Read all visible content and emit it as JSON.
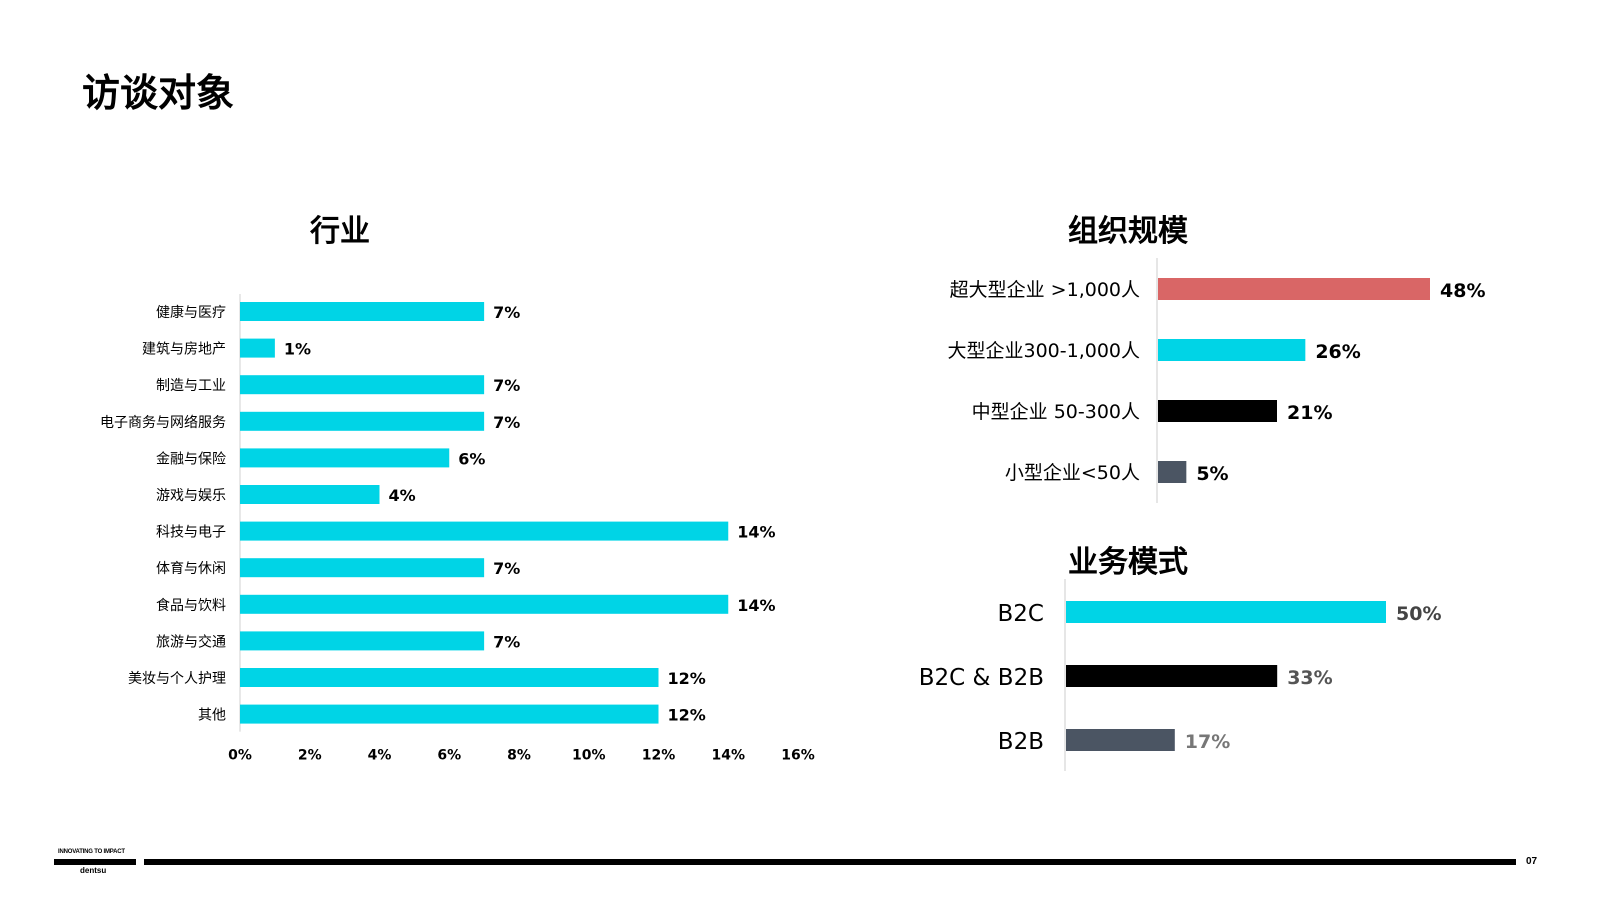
{
  "page": {
    "title": "访谈对象",
    "page_number": "07",
    "brand": {
      "tagline": "INNOVATING TO IMPACT",
      "logo": "dentsu"
    },
    "colors": {
      "cyan": "#00d4e6",
      "black": "#000000",
      "coral": "#d96666",
      "slate": "#4b5563"
    }
  },
  "chart_data": [
    {
      "type": "bar",
      "orientation": "horizontal",
      "title": "行业",
      "categories": [
        "健康与医疗",
        "建筑与房地产",
        "制造与工业",
        "电子商务与网络服务",
        "金融与保险",
        "游戏与娱乐",
        "科技与电子",
        "体育与休闲",
        "食品与饮料",
        "旅游与交通",
        "美妆与个人护理",
        "其他"
      ],
      "values": [
        7,
        1,
        7,
        7,
        6,
        4,
        14,
        7,
        14,
        7,
        12,
        12
      ],
      "value_labels": [
        "7%",
        "1%",
        "7%",
        "7%",
        "6%",
        "4%",
        "14%",
        "7%",
        "14%",
        "7%",
        "12%",
        "12%"
      ],
      "xlim": [
        0,
        16
      ],
      "x_ticks": [
        "0%",
        "2%",
        "4%",
        "6%",
        "8%",
        "10%",
        "12%",
        "14%",
        "16%"
      ],
      "color": "#00d4e6",
      "grid": false
    },
    {
      "type": "bar",
      "orientation": "horizontal",
      "title": "组织规模",
      "categories": [
        "超大型企业 >1,000人",
        "大型企业300-1,000人",
        "中型企业 50-300人",
        "小型企业<50人"
      ],
      "values": [
        48,
        26,
        21,
        5
      ],
      "value_labels": [
        "48%",
        "26%",
        "21%",
        "5%"
      ],
      "colors": [
        "#d96666",
        "#00d4e6",
        "#000000",
        "#4b5563"
      ],
      "grid": false
    },
    {
      "type": "bar",
      "orientation": "horizontal",
      "title": "业务模式",
      "categories": [
        "B2C",
        "B2C & B2B",
        "B2B"
      ],
      "values": [
        50,
        33,
        17
      ],
      "value_labels": [
        "50%",
        "33%",
        "17%"
      ],
      "colors": [
        "#00d4e6",
        "#000000",
        "#4b5563"
      ],
      "grid": false
    }
  ]
}
